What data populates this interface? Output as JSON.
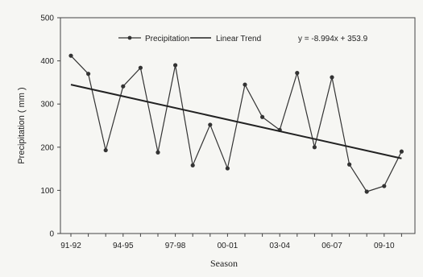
{
  "chart_data": {
    "type": "line",
    "title": "",
    "xlabel": "Season",
    "ylabel": "Precipitation ( mm )",
    "ylim": [
      0,
      500
    ],
    "yticks": [
      0,
      100,
      200,
      300,
      400,
      500
    ],
    "x_tick_labels": [
      {
        "index": 0,
        "label": "91-92"
      },
      {
        "index": 3,
        "label": "94-95"
      },
      {
        "index": 6,
        "label": "97-98"
      },
      {
        "index": 9,
        "label": "00-01"
      },
      {
        "index": 12,
        "label": "03-04"
      },
      {
        "index": 15,
        "label": "06-07"
      },
      {
        "index": 18,
        "label": "09-10"
      }
    ],
    "grid": false,
    "legend_position": "top",
    "series": [
      {
        "name": "Precipitation",
        "color": "#333333",
        "values": [
          412,
          370,
          193,
          341,
          384,
          188,
          390,
          158,
          252,
          151,
          345,
          270,
          240,
          372,
          200,
          362,
          160,
          97,
          110,
          190
        ]
      }
    ],
    "trend": {
      "name": "Linear Trend",
      "equation": "y = -8.994x + 353.9",
      "slope": -8.994,
      "intercept": 353.9,
      "color": "#222222"
    }
  }
}
